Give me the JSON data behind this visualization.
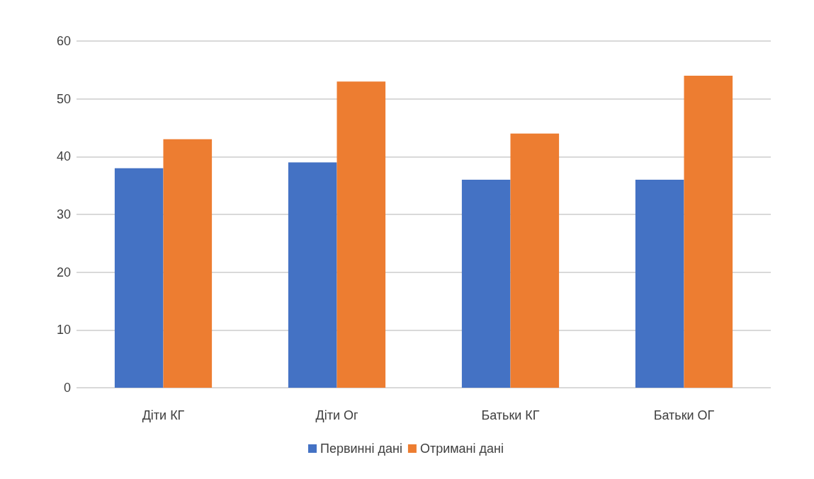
{
  "chart_data": {
    "type": "bar",
    "categories": [
      "Діти КГ",
      "Діти Ог",
      "Батьки КГ",
      "Батьки ОГ"
    ],
    "series": [
      {
        "name": "Первинні дані",
        "color": "#4472c4",
        "values": [
          38,
          39,
          36,
          36
        ]
      },
      {
        "name": "Отримані дані",
        "color": "#ed7d31",
        "values": [
          43,
          53,
          44,
          54
        ]
      }
    ],
    "ylim": [
      0,
      60
    ],
    "yticks": [
      0,
      10,
      20,
      30,
      40,
      50,
      60
    ],
    "grid": "y",
    "legend": "bottom"
  }
}
